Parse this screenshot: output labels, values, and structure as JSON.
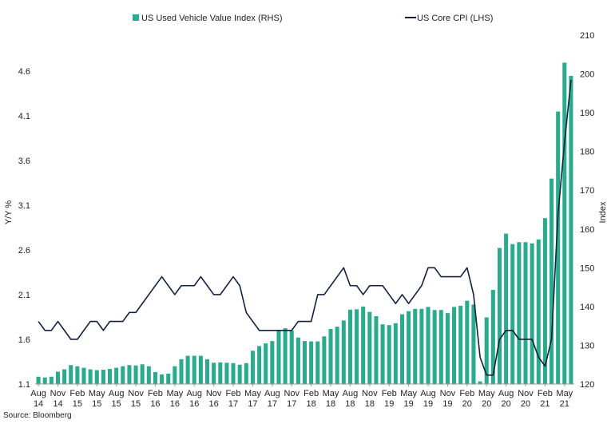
{
  "chart_data": {
    "type": "bar+line",
    "source": "Source: Bloomberg",
    "legend": {
      "placement": "top",
      "bar_label": "US Used Vehicle Value Index (RHS)",
      "line_label": "US Core CPI (LHS)"
    },
    "ylabel_left": "Y/Y %",
    "ylabel_right": "Index",
    "y_left": {
      "min": 1.1,
      "max": 5.0,
      "ticks": [
        "1.1",
        "1.6",
        "2.1",
        "2.6",
        "3.1",
        "3.6",
        "4.1",
        "4.6"
      ]
    },
    "y_right": {
      "min": 120,
      "max": 210,
      "ticks": [
        "120",
        "130",
        "140",
        "150",
        "160",
        "170",
        "180",
        "190",
        "200",
        "210"
      ]
    },
    "x_tick_labels": [
      [
        "Aug",
        "14"
      ],
      [
        "Nov",
        "14"
      ],
      [
        "Feb",
        "15"
      ],
      [
        "May",
        "15"
      ],
      [
        "Aug",
        "15"
      ],
      [
        "Nov",
        "15"
      ],
      [
        "Feb",
        "16"
      ],
      [
        "May",
        "16"
      ],
      [
        "Aug",
        "16"
      ],
      [
        "Nov",
        "16"
      ],
      [
        "Feb",
        "17"
      ],
      [
        "May",
        "17"
      ],
      [
        "Aug",
        "17"
      ],
      [
        "Nov",
        "17"
      ],
      [
        "Feb",
        "18"
      ],
      [
        "May",
        "18"
      ],
      [
        "Aug",
        "18"
      ],
      [
        "Nov",
        "18"
      ],
      [
        "Feb",
        "19"
      ],
      [
        "May",
        "19"
      ],
      [
        "Aug",
        "19"
      ],
      [
        "Nov",
        "19"
      ],
      [
        "Feb",
        "20"
      ],
      [
        "May",
        "20"
      ],
      [
        "Aug",
        "20"
      ],
      [
        "Nov",
        "20"
      ],
      [
        "Feb",
        "21"
      ],
      [
        "May",
        "21"
      ]
    ],
    "months": [
      "Aug 14",
      "Sep 14",
      "Oct 14",
      "Nov 14",
      "Dec 14",
      "Jan 15",
      "Feb 15",
      "Mar 15",
      "Apr 15",
      "May 15",
      "Jun 15",
      "Jul 15",
      "Aug 15",
      "Sep 15",
      "Oct 15",
      "Nov 15",
      "Dec 15",
      "Jan 16",
      "Feb 16",
      "Mar 16",
      "Apr 16",
      "May 16",
      "Jun 16",
      "Jul 16",
      "Aug 16",
      "Sep 16",
      "Oct 16",
      "Nov 16",
      "Dec 16",
      "Jan 17",
      "Feb 17",
      "Mar 17",
      "Apr 17",
      "May 17",
      "Jun 17",
      "Jul 17",
      "Aug 17",
      "Sep 17",
      "Oct 17",
      "Nov 17",
      "Dec 17",
      "Jan 18",
      "Feb 18",
      "Mar 18",
      "Apr 18",
      "May 18",
      "Jun 18",
      "Jul 18",
      "Aug 18",
      "Sep 18",
      "Oct 18",
      "Nov 18",
      "Dec 18",
      "Jan 19",
      "Feb 19",
      "Mar 19",
      "Apr 19",
      "May 19",
      "Jun 19",
      "Jul 19",
      "Aug 19",
      "Sep 19",
      "Oct 19",
      "Nov 19",
      "Dec 19",
      "Jan 20",
      "Feb 20",
      "Mar 20",
      "Apr 20",
      "May 20",
      "Jun 20",
      "Jul 20",
      "Aug 20",
      "Sep 20",
      "Oct 20",
      "Nov 20",
      "Dec 20",
      "Jan 21",
      "Feb 21",
      "Mar 21",
      "Apr 21",
      "May 21",
      "Jun 21"
    ],
    "series": [
      {
        "name": "US Used Vehicle Value Index (RHS)",
        "type": "bar",
        "axis": "right",
        "color": "#2aab8e",
        "values": [
          121.9,
          121.7,
          121.9,
          123.2,
          123.8,
          124.9,
          124.6,
          124.2,
          123.8,
          123.6,
          123.7,
          123.9,
          124.2,
          124.6,
          124.9,
          124.8,
          125.1,
          124.6,
          123.1,
          122.5,
          122.7,
          124.6,
          126.4,
          127.3,
          127.3,
          127.3,
          126.4,
          125.5,
          125.6,
          125.5,
          125.4,
          125.0,
          125.4,
          128.6,
          129.8,
          130.5,
          131.1,
          133.7,
          134.4,
          133.8,
          132.0,
          131.1,
          131.0,
          131.0,
          132.3,
          134.2,
          134.8,
          136.4,
          139.2,
          139.3,
          140.0,
          138.6,
          137.5,
          135.4,
          135.2,
          135.7,
          138.0,
          138.8,
          139.4,
          139.4,
          139.9,
          139.1,
          139.1,
          138.3,
          139.9,
          140.2,
          141.5,
          140.5,
          120.7,
          137.2,
          144.3,
          155.1,
          158.8,
          156.1,
          156.6,
          156.6,
          156.3,
          157.3,
          162.8,
          173.0,
          190.3,
          202.9,
          199.5
        ]
      },
      {
        "name": "US Core CPI (LHS)",
        "type": "line",
        "axis": "left",
        "color": "#14213d",
        "values": [
          1.8,
          1.7,
          1.7,
          1.8,
          1.7,
          1.6,
          1.6,
          1.7,
          1.8,
          1.8,
          1.7,
          1.8,
          1.8,
          1.8,
          1.9,
          1.9,
          2.0,
          2.1,
          2.2,
          2.3,
          2.2,
          2.1,
          2.2,
          2.2,
          2.2,
          2.3,
          2.2,
          2.1,
          2.1,
          2.2,
          2.3,
          2.2,
          1.9,
          1.8,
          1.7,
          1.7,
          1.7,
          1.7,
          1.7,
          1.7,
          1.8,
          1.8,
          1.8,
          2.1,
          2.1,
          2.2,
          2.3,
          2.4,
          2.2,
          2.2,
          2.1,
          2.2,
          2.2,
          2.2,
          2.1,
          2.0,
          2.1,
          2.0,
          2.1,
          2.2,
          2.4,
          2.4,
          2.3,
          2.3,
          2.3,
          2.3,
          2.4,
          2.1,
          1.4,
          1.2,
          1.2,
          1.6,
          1.7,
          1.7,
          1.6,
          1.6,
          1.6,
          1.4,
          1.3,
          1.6,
          3.0,
          3.8,
          4.5
        ]
      }
    ]
  }
}
